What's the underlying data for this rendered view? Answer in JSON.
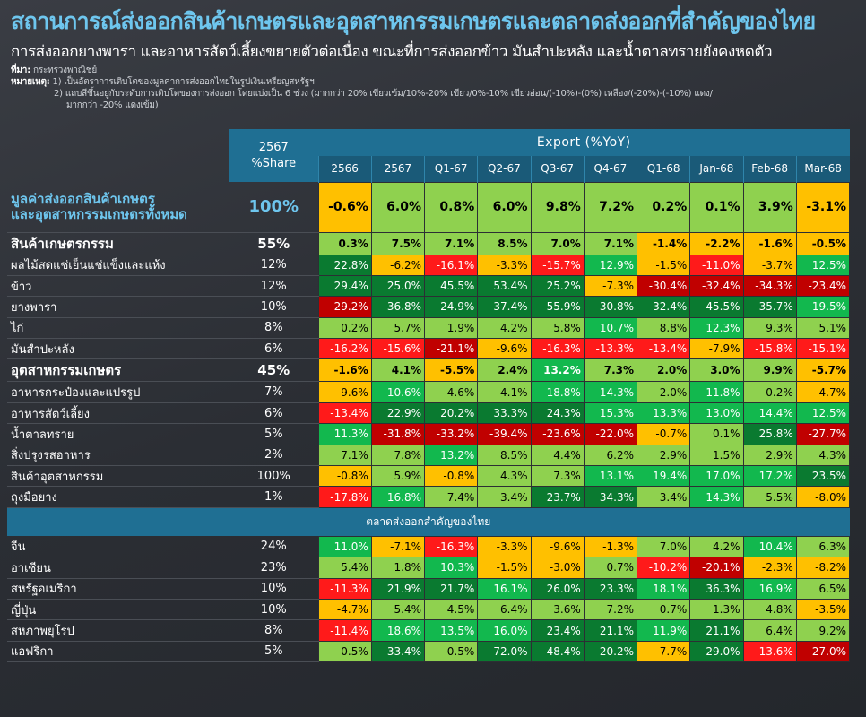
{
  "header": {
    "title": "สถานการณ์ส่งออกสินค้าเกษตรและอุตสาหกรรมเกษตรและตลาดส่งออกที่สำคัญของไทย",
    "subtitle": "การส่งออกยางพารา และอาหารสัตว์เลี้ยงขยายตัวต่อเนื่อง ขณะที่การส่งออกข้าว มันสำปะหลัง และน้ำตาลทรายยังคงหดตัว",
    "source_label": "ที่มา:",
    "source": "กระทรวงพาณิชย์",
    "note_label": "หมายเหตุ:",
    "note1": "1) เป็นอัตราการเติบโตของมูลค่าการส่งออกไทยในรูปเงินเหรียญสหรัฐฯ",
    "note2": "2) แถบสีขึ้นอยู่กับระดับการเติบโตของการส่งออก โดยแบ่งเป็น 6 ช่วง (มากกว่า 20% เขียวเข้ม/10%-20% เขียว/0%-10% เขียวอ่อน/(-10%)-(0%) เหลือง/(-20%)-(-10%) แดง/",
    "note3": "มากกว่า -20% แดงเข้ม)"
  },
  "table_header": {
    "share_year": "2567",
    "share_label": "%Share",
    "export_label": "Export (%YoY)",
    "periods": [
      "2566",
      "2567",
      "Q1-67",
      "Q2-67",
      "Q3-67",
      "Q4-67",
      "Q1-68",
      "Jan-68",
      "Feb-68",
      "Mar-68"
    ]
  },
  "market_section_label": "ตลาดส่งออกสำคัญของไทย",
  "colors": {
    "dark_green": "#0a7a30",
    "green": "#12b84e",
    "light_green": "#8fd14f",
    "yellow": "#ffc000",
    "red": "#ff1a1a",
    "dark_red": "#c00000",
    "header_blue": "#1f6f93"
  },
  "chart_data": {
    "type": "table",
    "title": "สถานการณ์ส่งออกสินค้าเกษตรและอุตสาหกรรมเกษตรและตลาดส่งออกที่สำคัญของไทย",
    "columns": [
      "2566",
      "2567",
      "Q1-67",
      "Q2-67",
      "Q3-67",
      "Q4-67",
      "Q1-68",
      "Jan-68",
      "Feb-68",
      "Mar-68"
    ],
    "products": [
      {
        "label": "มูลค่าส่งออกสินค้าเกษตร\nและอุตสาหกรรมเกษตรทั้งหมด",
        "share": "100%",
        "style": "total",
        "values": [
          -0.6,
          6.0,
          0.8,
          6.0,
          9.8,
          7.2,
          0.2,
          0.1,
          3.9,
          -3.1
        ]
      },
      {
        "label": "สินค้าเกษตรกรรม",
        "share": "55%",
        "style": "bold",
        "values": [
          0.3,
          7.5,
          7.1,
          8.5,
          7.0,
          7.1,
          -1.4,
          -2.2,
          -1.6,
          -0.5
        ]
      },
      {
        "label": "ผลไม้สดแช่เย็นแช่แข็งและแห้ง",
        "share": "12%",
        "style": "normal",
        "values": [
          22.8,
          -6.2,
          -16.1,
          -3.3,
          -15.7,
          12.9,
          -1.5,
          -11.0,
          -3.7,
          12.5
        ]
      },
      {
        "label": "ข้าว",
        "share": "12%",
        "style": "normal",
        "values": [
          29.4,
          25.0,
          45.5,
          53.4,
          25.2,
          -7.3,
          -30.4,
          -32.4,
          -34.3,
          -23.4
        ]
      },
      {
        "label": "ยางพารา",
        "share": "10%",
        "style": "normal",
        "values": [
          -29.2,
          36.8,
          24.9,
          37.4,
          55.9,
          30.8,
          32.4,
          45.5,
          35.7,
          19.5
        ]
      },
      {
        "label": "ไก่",
        "share": "8%",
        "style": "normal",
        "values": [
          0.2,
          5.7,
          1.9,
          4.2,
          5.8,
          10.7,
          8.8,
          12.3,
          9.3,
          5.1
        ]
      },
      {
        "label": "มันสำปะหลัง",
        "share": "6%",
        "style": "normal",
        "values": [
          -16.2,
          -15.6,
          -21.1,
          -9.6,
          -16.3,
          -13.3,
          -13.4,
          -7.9,
          -15.8,
          -15.1
        ]
      },
      {
        "label": "อุตสาหกรรมเกษตร",
        "share": "45%",
        "style": "bold",
        "values": [
          -1.6,
          4.1,
          -5.5,
          2.4,
          13.2,
          7.3,
          2.0,
          3.0,
          9.9,
          -5.7
        ]
      },
      {
        "label": "อาหารกระป๋องและแปรรูป",
        "share": "7%",
        "style": "normal",
        "values": [
          -9.6,
          10.6,
          4.6,
          4.1,
          18.8,
          14.3,
          2.0,
          11.8,
          0.2,
          -4.7
        ]
      },
      {
        "label": "อาหารสัตว์เลี้ยง",
        "share": "6%",
        "style": "normal",
        "values": [
          -13.4,
          22.9,
          20.2,
          33.3,
          24.3,
          15.3,
          13.3,
          13.0,
          14.4,
          12.5
        ]
      },
      {
        "label": "น้ำตาลทราย",
        "share": "5%",
        "style": "normal",
        "values": [
          11.3,
          -31.8,
          -33.2,
          -39.4,
          -23.6,
          -22.0,
          -0.7,
          0.1,
          25.8,
          -27.7
        ]
      },
      {
        "label": "สิ่งปรุงรสอาหาร",
        "share": "2%",
        "style": "normal",
        "values": [
          7.1,
          7.8,
          13.2,
          8.5,
          4.4,
          6.2,
          2.9,
          1.5,
          2.9,
          4.3
        ]
      },
      {
        "label": "สินค้าอุตสาหกรรม",
        "share": "100%",
        "style": "normal",
        "values": [
          -0.8,
          5.9,
          -0.8,
          4.3,
          7.3,
          13.1,
          19.4,
          17.0,
          17.2,
          23.5
        ]
      },
      {
        "label": "ถุงมือยาง",
        "share": "1%",
        "style": "normal",
        "values": [
          -17.8,
          16.8,
          7.4,
          3.4,
          23.7,
          34.3,
          3.4,
          14.3,
          5.5,
          -8.0
        ]
      }
    ],
    "markets": [
      {
        "label": "จีน",
        "share": "24%",
        "style": "normal",
        "values": [
          11.0,
          -7.1,
          -16.3,
          -3.3,
          -9.6,
          -1.3,
          7.0,
          4.2,
          10.4,
          6.3
        ]
      },
      {
        "label": "อาเซียน",
        "share": "23%",
        "style": "normal",
        "values": [
          5.4,
          1.8,
          10.3,
          -1.5,
          -3.0,
          0.7,
          -10.2,
          -20.1,
          -2.3,
          -8.2
        ]
      },
      {
        "label": "สหรัฐอเมริกา",
        "share": "10%",
        "style": "normal",
        "values": [
          -11.3,
          21.9,
          21.7,
          16.1,
          26.0,
          23.3,
          18.1,
          36.3,
          16.9,
          6.5
        ]
      },
      {
        "label": "ญี่ปุ่น",
        "share": "10%",
        "style": "normal",
        "values": [
          -4.7,
          5.4,
          4.5,
          6.4,
          3.6,
          7.2,
          0.7,
          1.3,
          4.8,
          -3.5
        ]
      },
      {
        "label": "สหภาพยุโรป",
        "share": "8%",
        "style": "normal",
        "values": [
          -11.4,
          18.6,
          13.5,
          16.0,
          23.4,
          21.1,
          11.9,
          21.1,
          6.4,
          9.2
        ]
      },
      {
        "label": "แอฟริกา",
        "share": "5%",
        "style": "normal",
        "values": [
          0.5,
          33.4,
          0.5,
          72.0,
          48.4,
          20.2,
          -7.7,
          29.0,
          -13.6,
          -27.0
        ]
      }
    ]
  }
}
